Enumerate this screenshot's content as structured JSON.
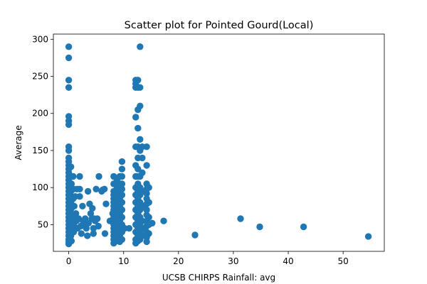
{
  "chart_data": {
    "type": "scatter",
    "title": "Scatter plot for Pointed Gourd(Local)",
    "xlabel": "UCSB CHIRPS Rainfall: avg",
    "ylabel": "Average",
    "xlim": [
      -2.8,
      57.5
    ],
    "ylim": [
      14,
      307
    ],
    "x_ticks": [
      0,
      10,
      20,
      30,
      40,
      50
    ],
    "y_ticks": [
      50,
      100,
      150,
      200,
      250,
      300
    ],
    "grid": false,
    "legend": "none",
    "marker_color": "#1f77b4",
    "points": [
      [
        0,
        290
      ],
      [
        0,
        275
      ],
      [
        0,
        245
      ],
      [
        0,
        235
      ],
      [
        0,
        196
      ],
      [
        0,
        190
      ],
      [
        0,
        185
      ],
      [
        0,
        155
      ],
      [
        0,
        150
      ],
      [
        0,
        140
      ],
      [
        0,
        135
      ],
      [
        0,
        130
      ],
      [
        0,
        125
      ],
      [
        0,
        120
      ],
      [
        0,
        115
      ],
      [
        0,
        110
      ],
      [
        0,
        105
      ],
      [
        0,
        100
      ],
      [
        0,
        95
      ],
      [
        0,
        90
      ],
      [
        0,
        85
      ],
      [
        0,
        80
      ],
      [
        0,
        75
      ],
      [
        0,
        70
      ],
      [
        0,
        65
      ],
      [
        0,
        60
      ],
      [
        0,
        55
      ],
      [
        0,
        50
      ],
      [
        0,
        45
      ],
      [
        0,
        40
      ],
      [
        0,
        35
      ],
      [
        0,
        30
      ],
      [
        0,
        27
      ],
      [
        0,
        24
      ],
      [
        0.4,
        128
      ],
      [
        0.4,
        115
      ],
      [
        0.5,
        105
      ],
      [
        0.4,
        95
      ],
      [
        0.5,
        88
      ],
      [
        0.4,
        80
      ],
      [
        0.5,
        72
      ],
      [
        0.4,
        65
      ],
      [
        0.5,
        58
      ],
      [
        0.4,
        50
      ],
      [
        0.5,
        42
      ],
      [
        0.4,
        35
      ],
      [
        0.5,
        28
      ],
      [
        0.8,
        115
      ],
      [
        0.9,
        98
      ],
      [
        0.8,
        85
      ],
      [
        1.0,
        75
      ],
      [
        0.9,
        62
      ],
      [
        0.8,
        55
      ],
      [
        1.0,
        48
      ],
      [
        0.9,
        40
      ],
      [
        1.2,
        88
      ],
      [
        1.3,
        65
      ],
      [
        1.5,
        98
      ],
      [
        1.4,
        55
      ],
      [
        1.6,
        45
      ],
      [
        1.8,
        58
      ],
      [
        2.0,
        115
      ],
      [
        2.0,
        98
      ],
      [
        2.0,
        88
      ],
      [
        2.2,
        48
      ],
      [
        2.3,
        38
      ],
      [
        2.5,
        75
      ],
      [
        2.6,
        55
      ],
      [
        2.8,
        50
      ],
      [
        3.0,
        58
      ],
      [
        3.2,
        45
      ],
      [
        3.4,
        35
      ],
      [
        3.5,
        95
      ],
      [
        3.6,
        52
      ],
      [
        3.8,
        78
      ],
      [
        4.0,
        65
      ],
      [
        4.2,
        58
      ],
      [
        4.3,
        72
      ],
      [
        4.5,
        45
      ],
      [
        4.5,
        38
      ],
      [
        4.6,
        58
      ],
      [
        4.8,
        55
      ],
      [
        5.0,
        98
      ],
      [
        5.2,
        58
      ],
      [
        5.4,
        48
      ],
      [
        5.5,
        115
      ],
      [
        6.0,
        95
      ],
      [
        6.2,
        97
      ],
      [
        6.5,
        98
      ],
      [
        6.6,
        38
      ],
      [
        6.8,
        78
      ],
      [
        7.5,
        55
      ],
      [
        8.0,
        65
      ],
      [
        8.2,
        115
      ],
      [
        8.2,
        105
      ],
      [
        8.2,
        95
      ],
      [
        8.2,
        90
      ],
      [
        8.2,
        85
      ],
      [
        8.2,
        80
      ],
      [
        8.2,
        75
      ],
      [
        8.2,
        70
      ],
      [
        8.2,
        65
      ],
      [
        8.2,
        60
      ],
      [
        8.2,
        55
      ],
      [
        8.2,
        50
      ],
      [
        8.2,
        45
      ],
      [
        8.2,
        40
      ],
      [
        8.2,
        35
      ],
      [
        8.2,
        30
      ],
      [
        8.2,
        25
      ],
      [
        8.8,
        110
      ],
      [
        8.8,
        100
      ],
      [
        8.8,
        92
      ],
      [
        8.8,
        84
      ],
      [
        8.8,
        76
      ],
      [
        8.8,
        68
      ],
      [
        8.8,
        60
      ],
      [
        8.8,
        52
      ],
      [
        8.8,
        44
      ],
      [
        8.8,
        36
      ],
      [
        8.8,
        28
      ],
      [
        9.3,
        115
      ],
      [
        9.3,
        105
      ],
      [
        9.3,
        95
      ],
      [
        9.3,
        85
      ],
      [
        9.3,
        75
      ],
      [
        9.3,
        65
      ],
      [
        9.3,
        55
      ],
      [
        9.3,
        45
      ],
      [
        9.3,
        35
      ],
      [
        9.3,
        27
      ],
      [
        9.7,
        135
      ],
      [
        9.7,
        125
      ],
      [
        9.7,
        115
      ],
      [
        9.7,
        105
      ],
      [
        9.7,
        98
      ],
      [
        9.7,
        90
      ],
      [
        9.7,
        80
      ],
      [
        9.7,
        70
      ],
      [
        9.7,
        60
      ],
      [
        9.7,
        50
      ],
      [
        9.7,
        40
      ],
      [
        9.7,
        30
      ],
      [
        10.2,
        45
      ],
      [
        11.0,
        45
      ],
      [
        12.2,
        245
      ],
      [
        12.2,
        240
      ],
      [
        12.2,
        235
      ],
      [
        12.2,
        195
      ],
      [
        12.2,
        155
      ],
      [
        12.2,
        130
      ],
      [
        12.2,
        115
      ],
      [
        12.2,
        100
      ],
      [
        12.2,
        90
      ],
      [
        12.2,
        80
      ],
      [
        12.2,
        70
      ],
      [
        12.2,
        60
      ],
      [
        12.2,
        50
      ],
      [
        12.2,
        40
      ],
      [
        12.2,
        30
      ],
      [
        12.2,
        25
      ],
      [
        12.6,
        245
      ],
      [
        12.6,
        235
      ],
      [
        12.6,
        205
      ],
      [
        12.6,
        180
      ],
      [
        12.6,
        155
      ],
      [
        12.6,
        140
      ],
      [
        12.6,
        125
      ],
      [
        12.6,
        115
      ],
      [
        12.6,
        105
      ],
      [
        12.6,
        95
      ],
      [
        12.6,
        85
      ],
      [
        12.6,
        75
      ],
      [
        12.6,
        65
      ],
      [
        12.6,
        55
      ],
      [
        12.6,
        45
      ],
      [
        12.6,
        35
      ],
      [
        12.6,
        28
      ],
      [
        13.0,
        290
      ],
      [
        13.0,
        235
      ],
      [
        13.0,
        210
      ],
      [
        13.0,
        165
      ],
      [
        13.0,
        150
      ],
      [
        13.0,
        115
      ],
      [
        13.0,
        100
      ],
      [
        13.0,
        90
      ],
      [
        13.0,
        80
      ],
      [
        13.0,
        70
      ],
      [
        13.0,
        60
      ],
      [
        13.0,
        50
      ],
      [
        13.0,
        40
      ],
      [
        13.0,
        30
      ],
      [
        13.4,
        155
      ],
      [
        13.4,
        140
      ],
      [
        13.4,
        120
      ],
      [
        13.4,
        95
      ],
      [
        13.4,
        75
      ],
      [
        13.4,
        55
      ],
      [
        13.4,
        45
      ],
      [
        13.4,
        35
      ],
      [
        14.2,
        155
      ],
      [
        14.2,
        130
      ],
      [
        14.2,
        105
      ],
      [
        14.2,
        98
      ],
      [
        14.2,
        92
      ],
      [
        14.2,
        85
      ],
      [
        14.2,
        78
      ],
      [
        14.2,
        70
      ],
      [
        14.2,
        63
      ],
      [
        14.2,
        55
      ],
      [
        14.2,
        48
      ],
      [
        14.2,
        40
      ],
      [
        14.2,
        33
      ],
      [
        14.2,
        27
      ],
      [
        14.6,
        100
      ],
      [
        14.6,
        80
      ],
      [
        14.6,
        60
      ],
      [
        14.6,
        50
      ],
      [
        14.6,
        38
      ],
      [
        15.2,
        52
      ],
      [
        17.3,
        55
      ],
      [
        23.0,
        36
      ],
      [
        31.3,
        58
      ],
      [
        34.8,
        47
      ],
      [
        42.8,
        47
      ],
      [
        54.6,
        34
      ]
    ]
  }
}
